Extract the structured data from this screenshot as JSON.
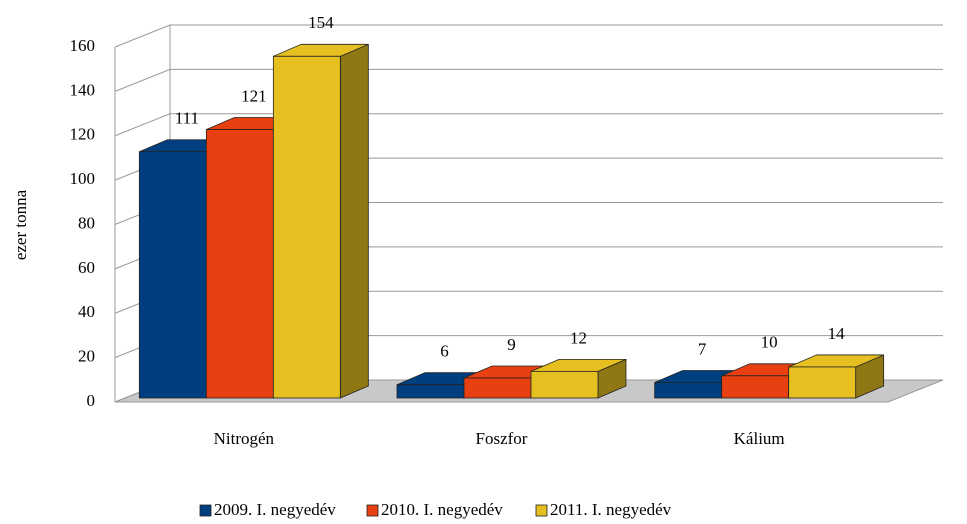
{
  "chart_data": {
    "type": "bar",
    "ylabel": "ezer tonna",
    "categories": [
      "Nitrogén",
      "Foszfor",
      "Kálium"
    ],
    "series": [
      {
        "name": "2009. I. negyedév",
        "color": "#003f7f",
        "values": [
          111,
          6,
          7
        ]
      },
      {
        "name": "2010. I. negyedév",
        "color": "#e84010",
        "values": [
          121,
          9,
          10
        ]
      },
      {
        "name": "2011. I. negyedév",
        "color": "#e6c020",
        "values": [
          154,
          12,
          14
        ]
      }
    ],
    "ylim": [
      0,
      160
    ],
    "yticks": [
      0,
      20,
      40,
      60,
      80,
      100,
      120,
      140,
      160
    ],
    "grid": true,
    "legend": "bottom"
  }
}
